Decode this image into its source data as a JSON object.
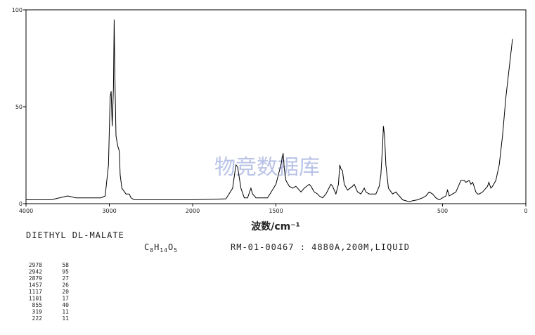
{
  "chart_data": {
    "type": "line",
    "compound": "DIETHYL DL-MALATE",
    "formula": [
      "C",
      "8",
      "H",
      "14",
      "O",
      "5"
    ],
    "record": "RM-01-00467 : 4880A,200M,LIQUID",
    "x_label": "波数/cm⁻¹",
    "watermark": "物竞数据库",
    "xlim": [
      4000,
      0
    ],
    "x_compression": {
      "above": 2000,
      "factor": 0.5
    },
    "xticks": [
      4000,
      3000,
      2000,
      1500,
      500,
      0
    ],
    "ylim": [
      0,
      100
    ],
    "yticks": [
      0,
      50,
      100
    ],
    "color": "#000000",
    "x": [
      4000,
      3700,
      3500,
      3400,
      3100,
      3050,
      3010,
      2990,
      2978,
      2965,
      2950,
      2942,
      2935,
      2920,
      2900,
      2879,
      2870,
      2850,
      2800,
      2760,
      2740,
      2700,
      2400,
      2000,
      1800,
      1760,
      1740,
      1730,
      1710,
      1690,
      1670,
      1650,
      1640,
      1620,
      1550,
      1500,
      1470,
      1457,
      1450,
      1440,
      1420,
      1400,
      1380,
      1370,
      1350,
      1330,
      1300,
      1290,
      1270,
      1250,
      1240,
      1220,
      1200,
      1170,
      1160,
      1140,
      1125,
      1117,
      1110,
      1101,
      1090,
      1070,
      1040,
      1030,
      1010,
      990,
      970,
      960,
      940,
      900,
      880,
      870,
      860,
      855,
      848,
      840,
      825,
      800,
      780,
      760,
      740,
      720,
      700,
      680,
      650,
      620,
      600,
      580,
      560,
      540,
      520,
      500,
      480,
      470,
      460,
      440,
      420,
      400,
      390,
      370,
      360,
      340,
      330,
      319,
      300,
      290,
      280,
      260,
      240,
      230,
      222,
      210,
      200,
      180,
      160,
      140,
      120,
      100,
      80
    ],
    "values": [
      2,
      2,
      4,
      3,
      3,
      4,
      20,
      55,
      58,
      40,
      60,
      95,
      70,
      35,
      30,
      27,
      15,
      8,
      5,
      5,
      3,
      2,
      2,
      2,
      2.5,
      8,
      20,
      19,
      8,
      3,
      3,
      8,
      5,
      3,
      3,
      10,
      20,
      26,
      18,
      12,
      9,
      8,
      9,
      8,
      6,
      8,
      10,
      9,
      6,
      5,
      4,
      3,
      5,
      10,
      9,
      5,
      10,
      20,
      18,
      17,
      10,
      7,
      9,
      10,
      6,
      5,
      8,
      6,
      5,
      5,
      9,
      15,
      30,
      40,
      35,
      20,
      8,
      5,
      6,
      4,
      2,
      1.5,
      1,
      1.5,
      2,
      3,
      4,
      6,
      5,
      3,
      2,
      3,
      4,
      7,
      4,
      5,
      6,
      10,
      12,
      12,
      11,
      12,
      10,
      11,
      6,
      5,
      5,
      6,
      8,
      9,
      11,
      8,
      9,
      12,
      20,
      35,
      55,
      70,
      85
    ],
    "peaks": [
      [
        2978,
        58
      ],
      [
        2942,
        95
      ],
      [
        2879,
        27
      ],
      [
        1457,
        26
      ],
      [
        1117,
        20
      ],
      [
        1101,
        17
      ],
      [
        855,
        40
      ],
      [
        319,
        11
      ],
      [
        222,
        11
      ]
    ]
  }
}
